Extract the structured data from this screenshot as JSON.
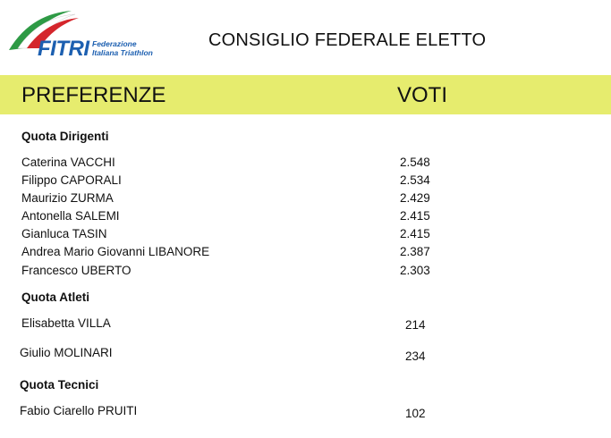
{
  "header": {
    "logo_text": "FITRI",
    "logo_sub_1": "Federazione",
    "logo_sub_2": "Italiana Triathlon",
    "title": "CONSIGLIO FEDERALE ELETTO"
  },
  "table": {
    "col_preferences": "PREFERENZE",
    "col_votes": "VOTI",
    "band_color": "#e6ec6e"
  },
  "sections": [
    {
      "title": "Quota Dirigenti",
      "rows": [
        {
          "name": "Caterina VACCHI",
          "votes": "2.548"
        },
        {
          "name": "Filippo CAPORALI",
          "votes": "2.534"
        },
        {
          "name": "Maurizio ZURMA",
          "votes": "2.429"
        },
        {
          "name": "Antonella SALEMI",
          "votes": "2.415"
        },
        {
          "name": "Gianluca TASIN",
          "votes": "2.415"
        },
        {
          "name": "Andrea Mario Giovanni LIBANORE",
          "votes": "2.387"
        },
        {
          "name": "Francesco UBERTO",
          "votes": "2.303"
        }
      ]
    },
    {
      "title": "Quota Atleti",
      "rows": [
        {
          "name": "Elisabetta VILLA",
          "votes": "214"
        },
        {
          "name": "Giulio MOLINARI",
          "votes": "234"
        }
      ]
    },
    {
      "title": "Quota Tecnici",
      "rows": [
        {
          "name": "Fabio Ciarello PRUITI",
          "votes": "102"
        }
      ]
    }
  ]
}
